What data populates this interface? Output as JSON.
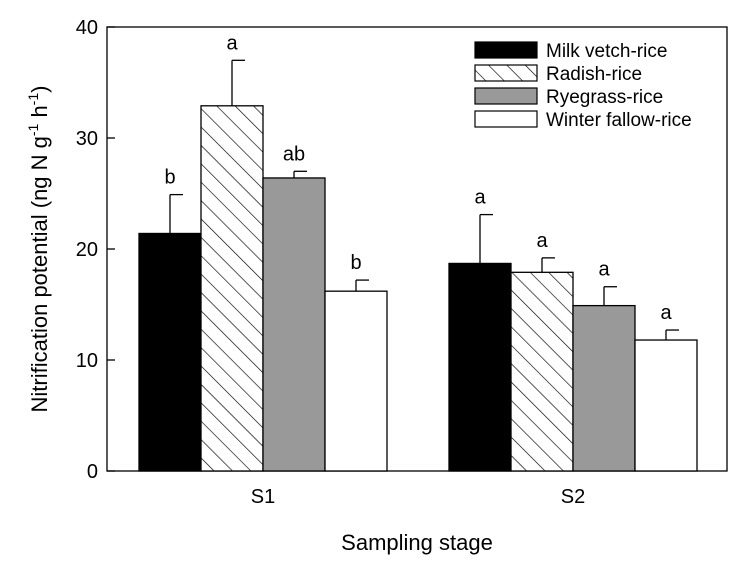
{
  "chart_data": {
    "type": "bar",
    "title": "",
    "xlabel": "Sampling stage",
    "ylabel": {
      "base": "Nitrification potential (ng N g",
      "sup1": "-1",
      "mid": " h",
      "sup2": "-1",
      "end": ")"
    },
    "categories": [
      "S1",
      "S2"
    ],
    "ylim": [
      0,
      40
    ],
    "yticks": [
      0,
      10,
      20,
      30,
      40
    ],
    "grid": false,
    "legend_position": "top-right",
    "series": [
      {
        "name": "Milk vetch-rice",
        "fill": "#000000",
        "pattern": "solid",
        "values": [
          21.4,
          18.7
        ],
        "errors": [
          3.5,
          4.4
        ],
        "letters": [
          "b",
          "a"
        ]
      },
      {
        "name": "Radish-rice",
        "fill": "#ffffff",
        "pattern": "hatch",
        "values": [
          32.9,
          17.9
        ],
        "errors": [
          4.1,
          1.3
        ],
        "letters": [
          "a",
          "a"
        ]
      },
      {
        "name": "Ryegrass-rice",
        "fill": "#999999",
        "pattern": "solid",
        "values": [
          26.4,
          14.9
        ],
        "errors": [
          0.6,
          1.7
        ],
        "letters": [
          "ab",
          "a"
        ]
      },
      {
        "name": "Winter fallow-rice",
        "fill": "#ffffff",
        "pattern": "solid",
        "values": [
          16.2,
          11.8
        ],
        "errors": [
          1.0,
          0.9
        ],
        "letters": [
          "b",
          "a"
        ]
      }
    ]
  }
}
